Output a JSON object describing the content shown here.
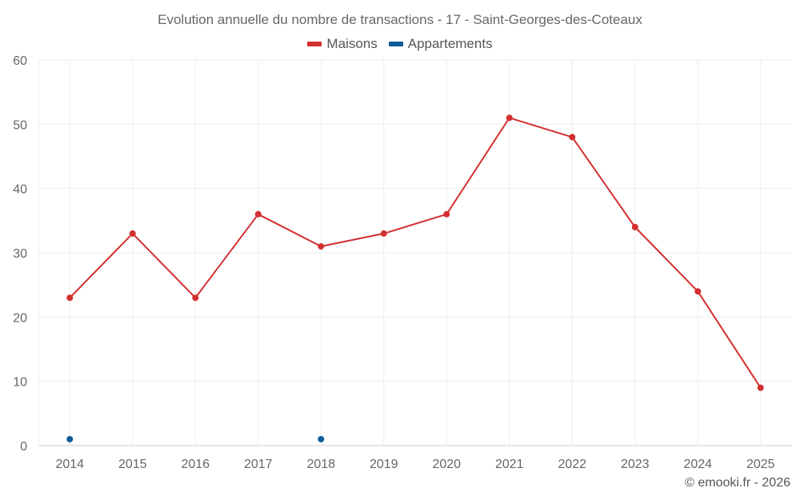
{
  "chart_data": {
    "type": "line",
    "title": "Evolution annuelle du nombre de transactions - 17 - Saint-Georges-des-Coteaux",
    "categories": [
      "2014",
      "2015",
      "2016",
      "2017",
      "2018",
      "2019",
      "2020",
      "2021",
      "2022",
      "2023",
      "2024",
      "2025"
    ],
    "ylim": [
      0,
      60
    ],
    "yticks": [
      0,
      10,
      20,
      30,
      40,
      50,
      60
    ],
    "grid": true,
    "legend_position": "top-center",
    "series": [
      {
        "name": "Maisons",
        "color": "#d32f2f",
        "values": [
          23,
          33,
          23,
          36,
          31,
          33,
          36,
          51,
          48,
          34,
          24,
          9
        ]
      },
      {
        "name": "Appartements",
        "color": "#0d5c99",
        "values": [
          1,
          null,
          null,
          null,
          1,
          null,
          null,
          null,
          null,
          null,
          null,
          null
        ]
      }
    ],
    "credit": "© emooki.fr - 2026"
  }
}
